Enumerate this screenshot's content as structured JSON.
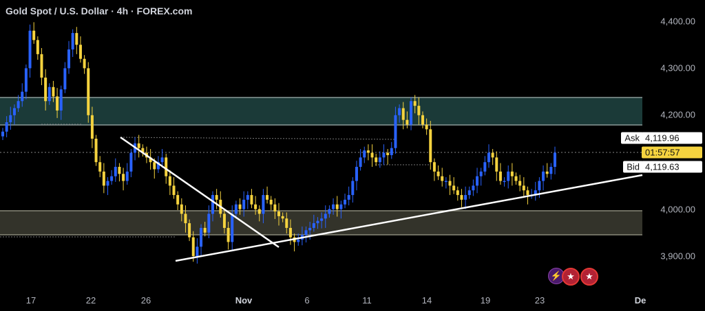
{
  "header": {
    "title": "Gold Spot / U.S. Dollar · 4h · FOREX.com"
  },
  "price_axis": {
    "labels": [
      "4,400.00",
      "4,300.00",
      "4,200.00",
      "4,000.00",
      "3,900.00"
    ]
  },
  "time_axis": {
    "labels": [
      "17",
      "22",
      "26",
      "Nov",
      "6",
      "11",
      "14",
      "19",
      "23",
      "De"
    ]
  },
  "quote": {
    "ask_label": "Ask",
    "ask": "4,119.96",
    "timer": "01:57:57",
    "bid_label": "Bid",
    "bid": "4,119.63"
  },
  "events": {
    "bolt": "⚡",
    "flag1": "★",
    "flag2": "★"
  },
  "colors": {
    "bull": "#2962ff",
    "bear": "#f5d33f",
    "resistance_zone": "#1b3a38",
    "support_zone": "#33332a",
    "trendline": "#ffffff"
  },
  "chart_data": {
    "type": "candlestick",
    "symbol": "Gold Spot / U.S. Dollar",
    "interval": "4h",
    "ylim": [
      3860,
      4440
    ],
    "zones": [
      {
        "kind": "resistance",
        "low": 4177,
        "high": 4238
      },
      {
        "kind": "support",
        "low": 3942,
        "high": 3995
      }
    ],
    "closes": [
      4165,
      4185,
      4200,
      4215,
      4230,
      4250,
      4300,
      4380,
      4360,
      4330,
      4280,
      4230,
      4260,
      4240,
      4210,
      4255,
      4300,
      4340,
      4375,
      4350,
      4320,
      4300,
      4200,
      4150,
      4100,
      4080,
      4050,
      4060,
      4070,
      4090,
      4075,
      4060,
      4080,
      4120,
      4140,
      4130,
      4120,
      4110,
      4100,
      4085,
      4100,
      4110,
      4070,
      4050,
      4030,
      4010,
      3990,
      3970,
      3940,
      3900,
      3920,
      3960,
      3950,
      3990,
      4030,
      4020,
      3990,
      3960,
      3930,
      3990,
      4010,
      4000,
      4020,
      4030,
      4010,
      4000,
      3990,
      4030,
      4020,
      4010,
      3995,
      3985,
      3980,
      3960,
      3940,
      3930,
      3935,
      3945,
      3955,
      3960,
      3970,
      3975,
      3980,
      3990,
      4000,
      4010,
      4000,
      4010,
      4020,
      4030,
      4060,
      4090,
      4110,
      4125,
      4120,
      4110,
      4100,
      4110,
      4120,
      4115,
      4130,
      4200,
      4215,
      4190,
      4180,
      4230,
      4220,
      4200,
      4180,
      4170,
      4100,
      4080,
      4070,
      4060,
      4060,
      4050,
      4040,
      4030,
      4020,
      4030,
      4040,
      4050,
      4070,
      4080,
      4100,
      4120,
      4110,
      4080,
      4060,
      4060,
      4080,
      4070,
      4060,
      4050,
      4040,
      4030,
      4030,
      4040,
      4060,
      4080,
      4075,
      4090,
      4120
    ]
  }
}
